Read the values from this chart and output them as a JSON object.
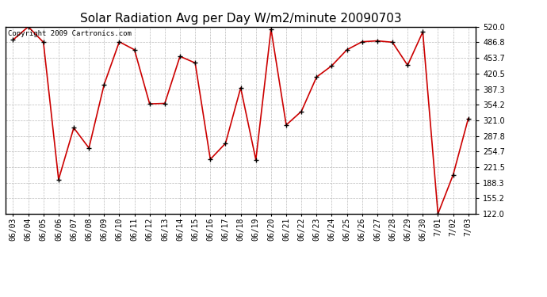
{
  "title": "Solar Radiation Avg per Day W/m2/minute 20090703",
  "copyright": "Copyright 2009 Cartronics.com",
  "dates": [
    "06/03",
    "06/04",
    "06/05",
    "06/06",
    "06/07",
    "06/08",
    "06/09",
    "06/10",
    "06/11",
    "06/12",
    "06/13",
    "06/14",
    "06/15",
    "06/16",
    "06/17",
    "06/18",
    "06/19",
    "06/20",
    "06/21",
    "06/22",
    "06/23",
    "06/24",
    "06/25",
    "06/26",
    "06/27",
    "06/28",
    "06/29",
    "06/30",
    "7/01",
    "7/02",
    "7/03"
  ],
  "values": [
    492,
    520,
    487,
    195,
    305,
    262,
    397,
    488,
    471,
    356,
    357,
    457,
    443,
    238,
    272,
    390,
    237,
    515,
    311,
    340,
    413,
    437,
    471,
    488,
    490,
    487,
    438,
    509,
    122,
    205,
    325
  ],
  "line_color": "#cc0000",
  "marker_color": "#000000",
  "bg_color": "#ffffff",
  "plot_bg_color": "#ffffff",
  "grid_color": "#bbbbbb",
  "ylim_min": 122.0,
  "ylim_max": 520.0,
  "yticks": [
    122.0,
    155.2,
    188.3,
    221.5,
    254.7,
    287.8,
    321.0,
    354.2,
    387.3,
    420.5,
    453.7,
    486.8,
    520.0
  ],
  "title_fontsize": 11,
  "tick_fontsize": 7,
  "copyright_fontsize": 6.5
}
